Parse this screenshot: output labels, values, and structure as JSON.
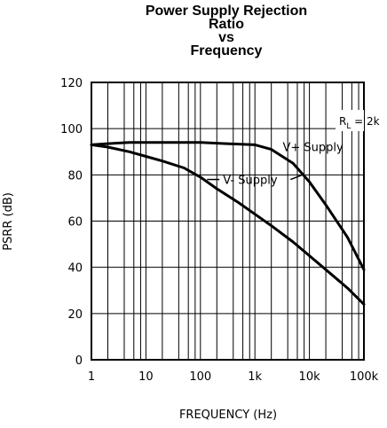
{
  "chart_data": {
    "type": "line",
    "title_lines": [
      "Power Supply Rejection",
      "Ratio",
      "vs",
      "Frequency"
    ],
    "xlabel": "FREQUENCY (Hz)",
    "ylabel": "PSRR (dB)",
    "x_scale": "log",
    "xlim": [
      1,
      100000
    ],
    "ylim": [
      0,
      120
    ],
    "x_ticks": [
      1,
      10,
      100,
      1000,
      10000,
      100000
    ],
    "x_tick_labels": [
      "1",
      "10",
      "100",
      "1k",
      "10k",
      "100k"
    ],
    "y_ticks": [
      0,
      20,
      40,
      60,
      80,
      100,
      120
    ],
    "y_tick_labels": [
      "0",
      "20",
      "40",
      "60",
      "80",
      "100",
      "120"
    ],
    "grid": true,
    "annotation": {
      "main": "R",
      "sub": "L",
      "rest": " = 2k"
    },
    "series": [
      {
        "name": "V+ Supply",
        "x": [
          1,
          2,
          5,
          10,
          30,
          100,
          300,
          1000,
          2000,
          5000,
          10000,
          20000,
          50000,
          100000
        ],
        "y": [
          93,
          93.5,
          94,
          94,
          94,
          94,
          93.5,
          93,
          91,
          85,
          77,
          67,
          53,
          39
        ]
      },
      {
        "name": "V- Supply",
        "x": [
          1,
          2,
          5,
          10,
          20,
          50,
          100,
          200,
          500,
          1000,
          2000,
          5000,
          10000,
          20000,
          50000,
          100000
        ],
        "y": [
          93,
          92,
          90,
          88,
          86,
          83,
          79,
          74,
          68,
          63,
          58,
          51,
          45,
          39,
          31,
          24
        ]
      }
    ]
  }
}
